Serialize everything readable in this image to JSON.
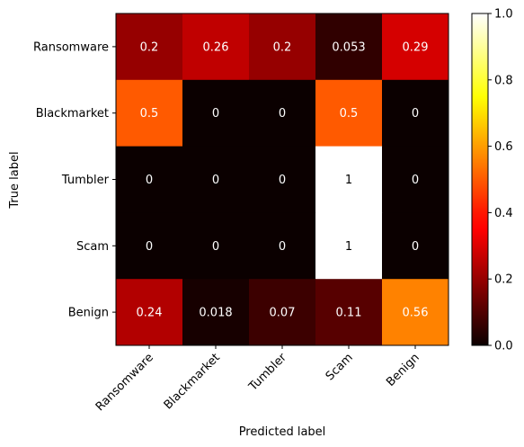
{
  "chart_data": {
    "type": "heatmap",
    "title": "",
    "xlabel": "Predicted label",
    "ylabel": "True label",
    "x_categories": [
      "Ransomware",
      "Blackmarket",
      "Tumbler",
      "Scam",
      "Benign"
    ],
    "y_categories": [
      "Ransomware",
      "Blackmarket",
      "Tumbler",
      "Scam",
      "Benign"
    ],
    "values": [
      [
        0.2,
        0.26,
        0.2,
        0.053,
        0.29
      ],
      [
        0.5,
        0,
        0,
        0.5,
        0
      ],
      [
        0,
        0,
        0,
        1,
        0
      ],
      [
        0,
        0,
        0,
        1,
        0
      ],
      [
        0.24,
        0.018,
        0.07,
        0.11,
        0.56
      ]
    ],
    "cell_labels": [
      [
        "0.2",
        "0.26",
        "0.2",
        "0.053",
        "0.29"
      ],
      [
        "0.5",
        "0",
        "0",
        "0.5",
        "0"
      ],
      [
        "0",
        "0",
        "0",
        "1",
        "0"
      ],
      [
        "0",
        "0",
        "0",
        "1",
        "0"
      ],
      [
        "0.24",
        "0.018",
        "0.07",
        "0.11",
        "0.56"
      ]
    ],
    "colormap": "hot",
    "vmin": 0,
    "vmax": 1,
    "colorbar_ticks": [
      "0.0",
      "0.2",
      "0.4",
      "0.6",
      "0.8",
      "1.0"
    ],
    "colorbar_tick_values": [
      0,
      0.2,
      0.4,
      0.6,
      0.8,
      1.0
    ],
    "grid": false
  }
}
